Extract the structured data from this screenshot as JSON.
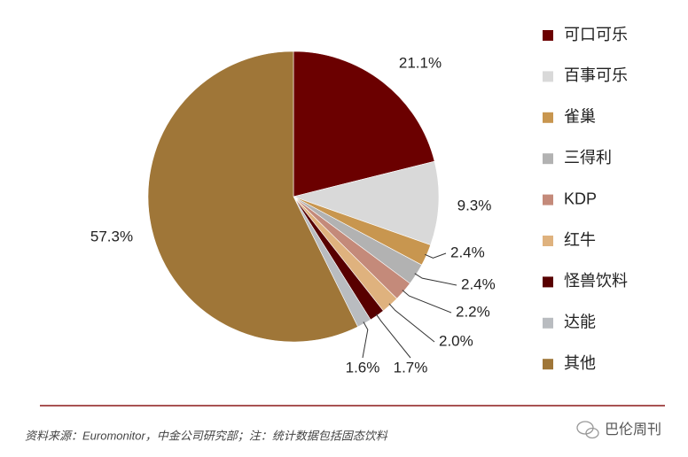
{
  "chart_data": {
    "type": "pie",
    "categories": [
      "可口可乐",
      "百事可乐",
      "雀巢",
      "三得利",
      "KDP",
      "红牛",
      "怪兽饮料",
      "达能",
      "其他"
    ],
    "values": [
      21.1,
      9.3,
      2.4,
      2.4,
      2.2,
      2.0,
      1.7,
      1.6,
      57.3
    ],
    "value_labels": [
      "21.1%",
      "9.3%",
      "2.4%",
      "2.4%",
      "2.2%",
      "2.0%",
      "1.7%",
      "1.6%",
      "57.3%"
    ],
    "colors": [
      "#6b0000",
      "#d9d9d9",
      "#c8964f",
      "#b2b2b2",
      "#c48a7a",
      "#dfb27e",
      "#580000",
      "#b9bcc0",
      "#9f7638"
    ],
    "legend": "right",
    "note": "资料来源：Euromonitor，中金公司研究部；注：统计数据包括固态饮料",
    "watermark": "巴伦周刊"
  }
}
